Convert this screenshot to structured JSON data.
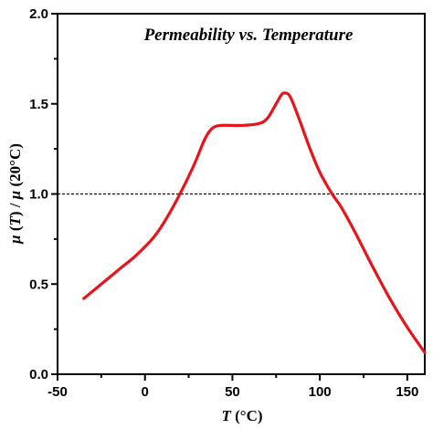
{
  "chart_data": {
    "type": "line",
    "title": "Permeability vs. Temperature",
    "xlabel": {
      "var": "T",
      "unit": " (°C)"
    },
    "ylabel": {
      "mu1": "μ",
      "t1": " (",
      "var": "T",
      "t2": ") / ",
      "mu2": "μ",
      "unit": " (20°C)"
    },
    "xlim": [
      -50,
      160
    ],
    "ylim": [
      0,
      2.0
    ],
    "xticks": [
      -50,
      0,
      50,
      100,
      150
    ],
    "yticks": [
      "0.0",
      "0.5",
      "1.0",
      "1.5",
      "2.0"
    ],
    "grid": false,
    "reference_line": {
      "y": 1.0,
      "style": "dashed"
    },
    "series": [
      {
        "color": "#e8141c",
        "points": [
          [
            -35,
            0.42
          ],
          [
            -25,
            0.5
          ],
          [
            -15,
            0.58
          ],
          [
            -5,
            0.66
          ],
          [
            5,
            0.76
          ],
          [
            12,
            0.86
          ],
          [
            20,
            1.0
          ],
          [
            28,
            1.16
          ],
          [
            34,
            1.3
          ],
          [
            38,
            1.36
          ],
          [
            43,
            1.38
          ],
          [
            55,
            1.38
          ],
          [
            65,
            1.39
          ],
          [
            70,
            1.42
          ],
          [
            75,
            1.5
          ],
          [
            78,
            1.55
          ],
          [
            80,
            1.56
          ],
          [
            83,
            1.54
          ],
          [
            88,
            1.42
          ],
          [
            94,
            1.26
          ],
          [
            100,
            1.12
          ],
          [
            107,
            1.0
          ],
          [
            112,
            0.93
          ],
          [
            120,
            0.79
          ],
          [
            130,
            0.6
          ],
          [
            140,
            0.42
          ],
          [
            150,
            0.26
          ],
          [
            160,
            0.12
          ]
        ]
      }
    ]
  },
  "colors": {
    "axis": "#000000",
    "series": "#e8141c",
    "background": "#ffffff"
  }
}
